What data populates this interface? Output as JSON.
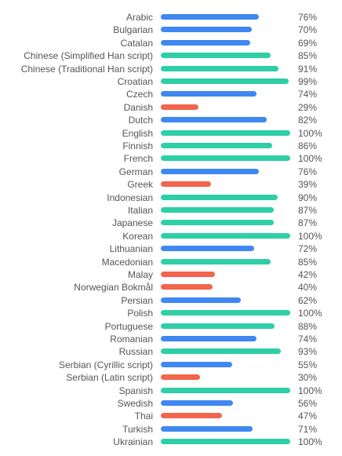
{
  "colors": {
    "high": "#2ecfa6",
    "mid": "#3f88f2",
    "low": "#f1664c",
    "text": "#555555"
  },
  "chart_data": {
    "type": "bar",
    "orientation": "horizontal",
    "title": "",
    "xlabel": "",
    "ylabel": "",
    "xlim": [
      0,
      100
    ],
    "unit": "%",
    "categories": [
      "Arabic",
      "Bulgarian",
      "Catalan",
      "Chinese (Simplified Han script)",
      "Chinese (Traditional Han script)",
      "Croatian",
      "Czech",
      "Danish",
      "Dutch",
      "English",
      "Finnish",
      "French",
      "German",
      "Greek",
      "Indonesian",
      "Italian",
      "Japanese",
      "Korean",
      "Lithuanian",
      "Macedonian",
      "Malay",
      "Norwegian Bokmål",
      "Persian",
      "Polish",
      "Portuguese",
      "Romanian",
      "Russian",
      "Serbian (Cyrillic script)",
      "Serbian (Latin script)",
      "Spanish",
      "Swedish",
      "Thai",
      "Turkish",
      "Ukrainian"
    ],
    "values": [
      76,
      70,
      69,
      85,
      91,
      99,
      74,
      29,
      82,
      100,
      86,
      100,
      76,
      39,
      90,
      87,
      87,
      100,
      72,
      85,
      42,
      40,
      62,
      100,
      88,
      74,
      93,
      55,
      30,
      100,
      56,
      47,
      71,
      100
    ],
    "value_labels": [
      "76%",
      "70%",
      "69%",
      "85%",
      "91%",
      "99%",
      "74%",
      "29%",
      "82%",
      "100%",
      "86%",
      "100%",
      "76%",
      "39%",
      "90%",
      "87%",
      "87%",
      "100%",
      "72%",
      "85%",
      "42%",
      "40%",
      "62%",
      "100%",
      "88%",
      "74%",
      "93%",
      "55%",
      "30%",
      "100%",
      "56%",
      "47%",
      "71%",
      "100%"
    ],
    "color_levels": [
      "mid",
      "mid",
      "mid",
      "high",
      "high",
      "high",
      "mid",
      "low",
      "mid",
      "high",
      "high",
      "high",
      "mid",
      "low",
      "high",
      "high",
      "high",
      "high",
      "mid",
      "high",
      "low",
      "low",
      "mid",
      "high",
      "high",
      "mid",
      "high",
      "mid",
      "low",
      "high",
      "mid",
      "low",
      "mid",
      "high"
    ],
    "grid": false,
    "legend": "none"
  }
}
